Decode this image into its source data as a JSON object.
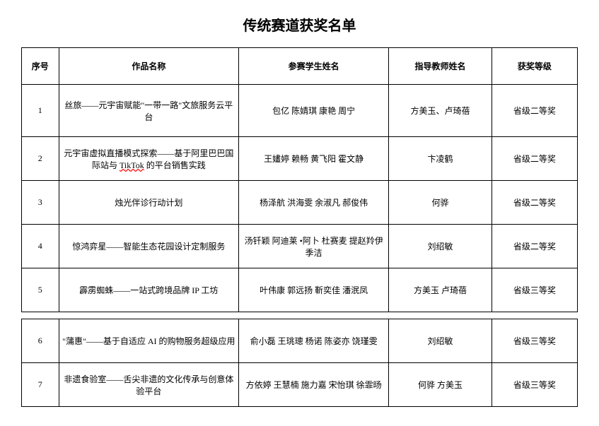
{
  "title": "传统赛道获奖名单",
  "columns": {
    "seq": "序号",
    "name": "作品名称",
    "students": "参赛学生姓名",
    "teacher": "指导教师姓名",
    "award": "获奖等级"
  },
  "rows": [
    {
      "seq": "1",
      "name": "丝旅——元宇宙赋能\"一带一路\"文旅服务云平台",
      "students": "包亿  陈婧琪  康艳  周宁",
      "teacher": "方美玉、卢琦蓓",
      "award": "省级二等奖",
      "tall": true
    },
    {
      "seq": "2",
      "name_pre": "元宇宙虚拟直播模式探索——基于阿里巴巴国际站与 ",
      "name_mark": "TikTok",
      "name_post": " 的平台销售实践",
      "students": "王嫿婷  赖畅  黄飞阳  霍文静",
      "teacher": "卞凌鹤",
      "award": "省级二等奖"
    },
    {
      "seq": "3",
      "name": "烛光伴诊行动计划",
      "students": "杨泽航  洪海雯  余淑凡  郝俊伟",
      "teacher": "何骅",
      "award": "省级二等奖"
    },
    {
      "seq": "4",
      "name": "惊鸿弈星——智能生态花园设计定制服务",
      "students": "汤钎颖  阿迪莱  •阿卜  杜赛麦  提赵羚伊  季洁",
      "teacher": "刘绍敏",
      "award": "省级二等奖"
    },
    {
      "seq": "5",
      "name": "霹雳蜘蛛——一站式跨境品牌 IP 工坊",
      "students": "叶伟康  郭远扬  靳奕佳  潘泯凤",
      "teacher": "方美玉  卢琦蓓",
      "award": "省级三等奖"
    }
  ],
  "rows2": [
    {
      "seq": "6",
      "name": "\"蒲惠\"——基于自适应 AI 的购物服务超级应用",
      "students": "俞小磊  王珧璁  杨诺  陈姿亦  饶瑾雯",
      "teacher": "刘绍敏",
      "award": "省级三等奖"
    },
    {
      "seq": "7",
      "name": "非遗食验室——舌尖非遗的文化传承与创意体验平台",
      "students": "方依婷  王慧楠  施力嘉  宋怡琪  徐霏旸",
      "teacher": "何骅  方美玉",
      "award": "省级三等奖"
    }
  ]
}
